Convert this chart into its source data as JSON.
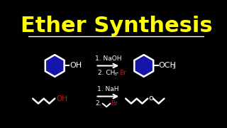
{
  "title": "Ether Synthesis",
  "title_color": "#FFFF00",
  "title_fontsize": 22,
  "bg_color": "#000000",
  "white": "#ffffff",
  "red": "#cc1111",
  "yellow": "#FFFF00",
  "blue_fill": "#1515aa",
  "reaction1": {
    "step1": "1. NaOH",
    "step2_pre": "2. CH",
    "step2_sub": "3",
    "step2_dash": "-",
    "step2_red": "Br"
  },
  "reaction2": {
    "step1": "1. NaH",
    "step2_pre": "2.",
    "step2_red": "Br"
  }
}
